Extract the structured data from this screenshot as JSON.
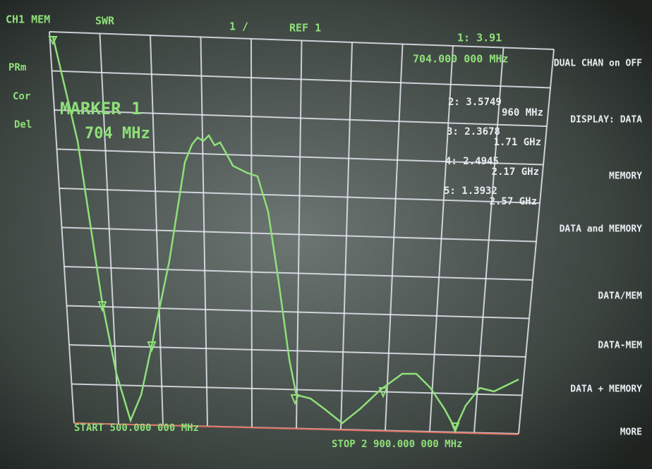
{
  "header": {
    "channel": "CH1 MEM",
    "format": "SWR",
    "scale": "1 /",
    "ref": "REF 1",
    "marker_value": "1: 3.91",
    "marker_freq": "704.000 000 MHz"
  },
  "left_labels": [
    "PRm",
    "Cor",
    "Del"
  ],
  "marker": {
    "title": "MARKER 1",
    "freq": "704 MHz"
  },
  "marker_list": [
    {
      "value": "2: 3.5749",
      "freq": "960 MHz"
    },
    {
      "value": "3: 2.3678",
      "freq": "1.71 GHz"
    },
    {
      "value": "4: 2.4945",
      "freq": "2.17 GHz"
    },
    {
      "value": "5: 1.3932",
      "freq": "2.57 GHz"
    }
  ],
  "softkeys": [
    "DUAL CHAN on OFF",
    "DISPLAY: DATA",
    "MEMORY",
    "DATA and MEMORY",
    "DATA/MEM",
    "DATA-MEM",
    "DATA + MEMORY",
    "MORE"
  ],
  "footer": {
    "start": "START 500.000 000 MHz",
    "stop": "STOP 2 900.000 000 MHz"
  }
}
